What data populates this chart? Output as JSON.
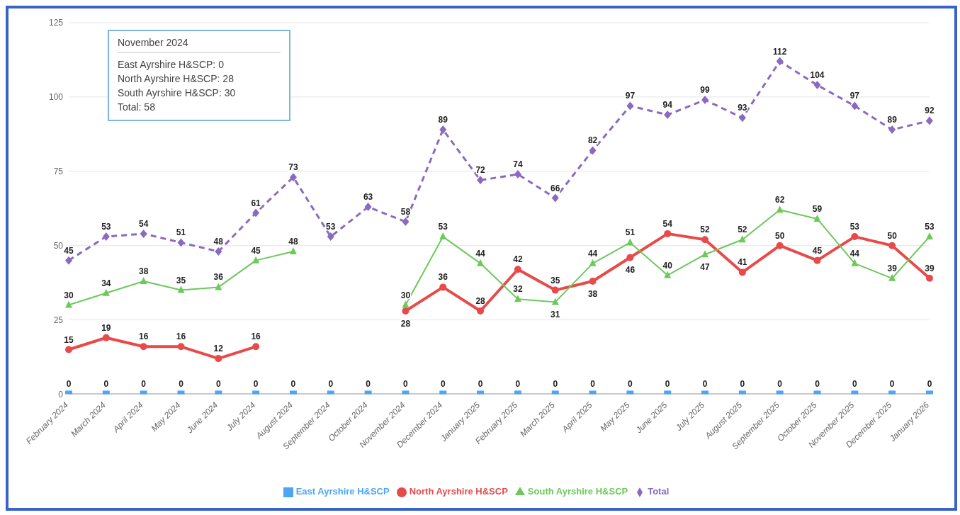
{
  "chart_data": {
    "type": "line",
    "categories": [
      "February 2024",
      "March 2024",
      "April 2024",
      "May 2024",
      "June 2024",
      "July 2024",
      "August 2024",
      "September 2024",
      "October 2024",
      "November 2024",
      "December 2024",
      "January 2025",
      "February 2025",
      "March 2025",
      "April 2025",
      "May 2025",
      "June 2025",
      "July 2025",
      "August 2025",
      "September 2025",
      "October 2025",
      "November 2025",
      "December 2025",
      "January 2026"
    ],
    "series": [
      {
        "name": "East Ayrshire H&SCP",
        "color": "#4da6f5",
        "marker": "square",
        "values": [
          0,
          0,
          0,
          0,
          0,
          0,
          0,
          0,
          0,
          0,
          0,
          0,
          0,
          0,
          0,
          0,
          0,
          0,
          0,
          0,
          0,
          0,
          0,
          0
        ]
      },
      {
        "name": "North Ayrshire H&SCP",
        "color": "#e84a4a",
        "marker": "circle",
        "values": [
          15,
          19,
          16,
          16,
          12,
          16,
          null,
          null,
          null,
          28,
          36,
          28,
          42,
          35,
          38,
          46,
          54,
          52,
          41,
          50,
          45,
          53,
          50,
          39
        ]
      },
      {
        "name": "South Ayrshire H&SCP",
        "color": "#6cc95a",
        "marker": "triangle",
        "values": [
          30,
          34,
          38,
          35,
          36,
          45,
          48,
          null,
          null,
          30,
          53,
          44,
          32,
          31,
          44,
          51,
          40,
          47,
          52,
          62,
          59,
          44,
          39,
          53
        ]
      },
      {
        "name": "Total",
        "color": "#8a6ac0",
        "marker": "diamond",
        "line_style": "dashed",
        "values": [
          45,
          53,
          54,
          51,
          48,
          61,
          73,
          53,
          63,
          58,
          89,
          72,
          74,
          66,
          82,
          97,
          94,
          99,
          93,
          112,
          104,
          97,
          89,
          92
        ]
      }
    ],
    "ylim": [
      0,
      125
    ],
    "yticks": [
      0,
      25,
      50,
      75,
      100,
      125
    ],
    "grid": "y",
    "legend": "bottom",
    "data_labels": true,
    "annotations": [
      "November 2024",
      "East Ayrshire H&SCP: 0",
      "North Ayrshire H&SCP: 28",
      "South Ayrshire H&SCP: 30",
      "Total: 58"
    ]
  }
}
